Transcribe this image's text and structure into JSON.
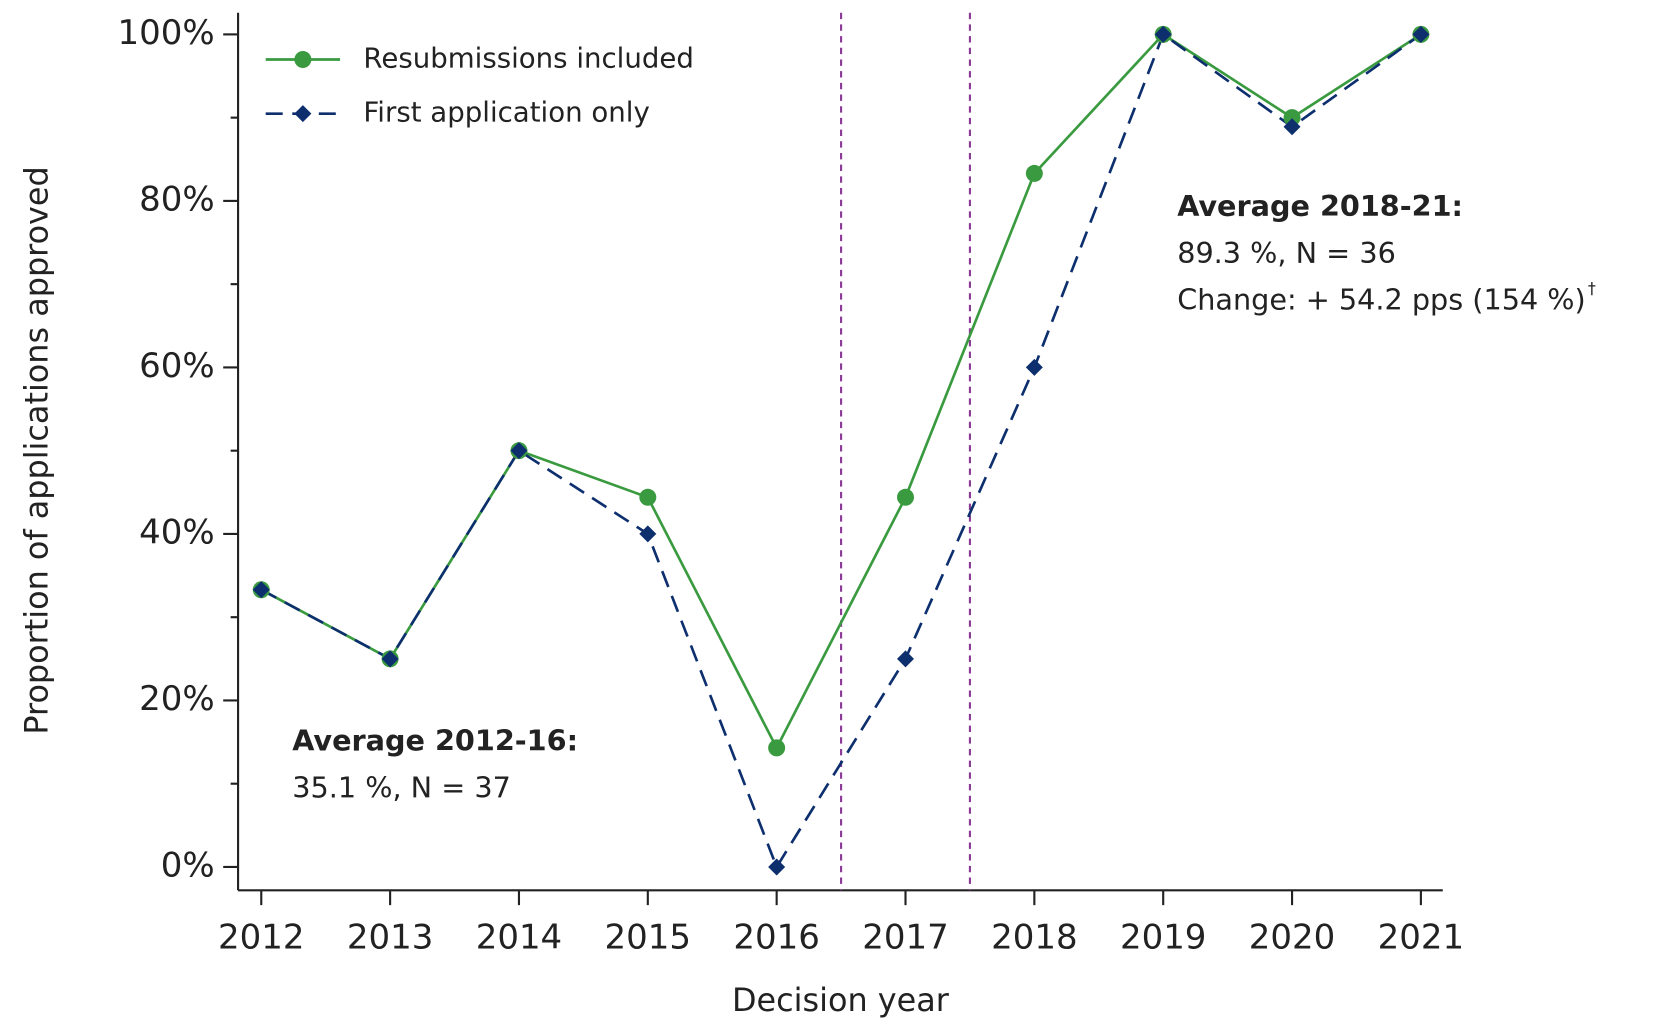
{
  "chart_data": {
    "type": "line",
    "x_label": "Decision year",
    "y_label": "Proportion of applications approved",
    "x": [
      2012,
      2013,
      2014,
      2015,
      2016,
      2017,
      2018,
      2019,
      2020,
      2021
    ],
    "series": [
      {
        "name": "Resubmissions included",
        "color": "#3a9a3f",
        "marker": "circle",
        "dash": "solid",
        "values": [
          33.3,
          25,
          50,
          44.4,
          14.3,
          44.4,
          83.3,
          100,
          90,
          100
        ]
      },
      {
        "name": "First application only",
        "color": "#0d2f6e",
        "marker": "diamond",
        "dash": "dashed",
        "values": [
          33.3,
          25,
          50,
          40,
          0,
          25,
          60,
          100,
          88.9,
          100
        ]
      }
    ],
    "xlim": [
      2011.82,
      2021.17
    ],
    "xticks": [
      2012,
      2013,
      2014,
      2015,
      2016,
      2017,
      2018,
      2019,
      2020,
      2021
    ],
    "ylim": [
      -2.8,
      102.6
    ],
    "yticks": [
      {
        "value": 0,
        "label": "0%"
      },
      {
        "value": 20,
        "label": "20%"
      },
      {
        "value": 40,
        "label": "40%"
      },
      {
        "value": 60,
        "label": "60%"
      },
      {
        "value": 80,
        "label": "80%"
      },
      {
        "value": 100,
        "label": "100%"
      }
    ],
    "yminor": [
      10,
      30,
      50,
      70,
      90
    ],
    "vlines": [
      2016.5,
      2017.5
    ],
    "vline_color": "#8b3a96",
    "legend": "top-left",
    "annotations": [
      {
        "heading": "Average 2012-16:",
        "lines": [
          "35.1 %, N = 37"
        ]
      },
      {
        "heading": "Average 2018-21:",
        "lines": [
          "89.3 %, N = 36",
          "Change: + 54.2 pps (154 %)"
        ],
        "note_mark": "†"
      }
    ]
  }
}
